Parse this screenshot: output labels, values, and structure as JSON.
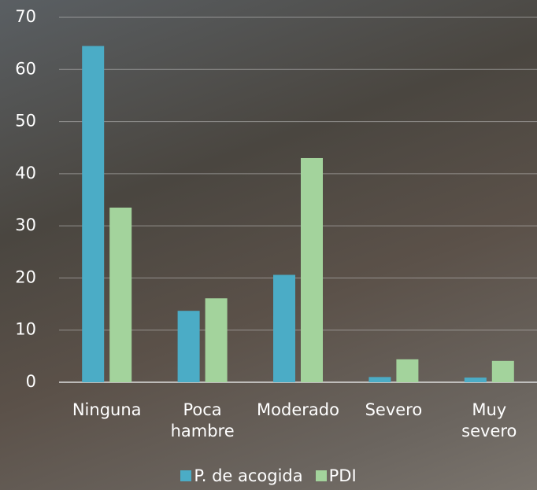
{
  "chart_data": {
    "type": "bar",
    "categories": [
      "Ninguna",
      "Poca hambre",
      "Moderado",
      "Severo",
      "Muy severo"
    ],
    "series": [
      {
        "name": "P. de acogida",
        "color": "#4bacc6",
        "values": [
          64.5,
          13.7,
          20.6,
          1.0,
          0.9
        ]
      },
      {
        "name": "PDI",
        "color": "#a3d39c",
        "values": [
          33.5,
          16.1,
          43.0,
          4.4,
          4.1
        ]
      }
    ],
    "ylim": [
      0,
      70
    ],
    "yticks": [
      0,
      10,
      20,
      30,
      40,
      50,
      60,
      70
    ],
    "grid": true,
    "legend": "bottom"
  }
}
